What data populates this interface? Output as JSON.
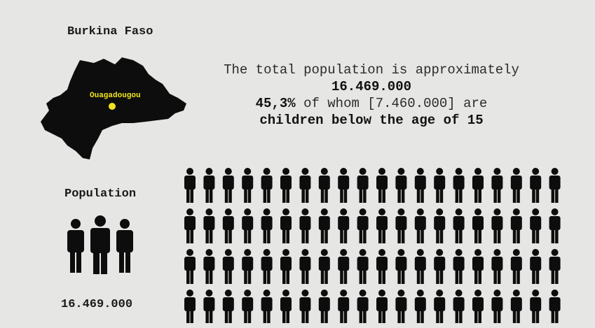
{
  "country": "Burkina Faso",
  "capital": "Ouagadougou",
  "headline": {
    "line1": "The total population is approximately",
    "total": "16.469.000",
    "pct": "45,3%",
    "line3_rest": " of whom [7.460.000] are",
    "line4": "children below the age of 15"
  },
  "population": {
    "title": "Population",
    "value": "16.469.000"
  },
  "icons": {
    "person": "person-icon",
    "family": "people-group-icon",
    "map": "burkina-faso-map-icon",
    "capital_marker": "capital-dot-icon"
  },
  "grid": {
    "rows": 4,
    "cols": 20
  },
  "colors": {
    "background": "#e6e6e4",
    "ink": "#111111",
    "capital": "#f2e51c"
  }
}
